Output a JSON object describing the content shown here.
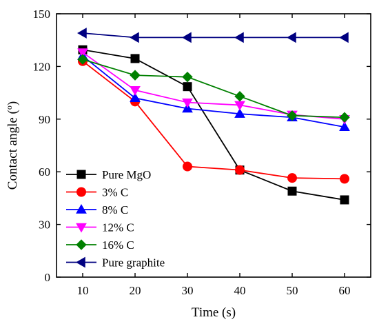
{
  "chart_data": {
    "type": "line",
    "xlabel": "Time (s)",
    "ylabel": "Contact angle (",
    "ylabel_sup": "o",
    "ylabel_close": ")",
    "xlim": [
      5,
      65
    ],
    "ylim": [
      0,
      150
    ],
    "xticks": [
      10,
      20,
      30,
      40,
      50,
      60
    ],
    "yticks": [
      0,
      30,
      60,
      90,
      120,
      150
    ],
    "x": [
      10,
      20,
      30,
      40,
      50,
      60
    ],
    "grid": false,
    "legend_position": "bottom-left",
    "series": [
      {
        "name": "Pure MgO",
        "color": "#000000",
        "marker": "square",
        "values": [
          129.5,
          124.5,
          108.5,
          61,
          49,
          44
        ]
      },
      {
        "name": "3% C",
        "color": "#ff0000",
        "marker": "circle",
        "values": [
          123,
          100,
          63,
          61,
          56.5,
          56
        ]
      },
      {
        "name": "8% C",
        "color": "#0000ff",
        "marker": "triangle-up",
        "values": [
          126,
          102,
          96,
          93,
          91,
          85.5
        ]
      },
      {
        "name": "12% C",
        "color": "#ff00ff",
        "marker": "triangle-down",
        "values": [
          128,
          106.5,
          99.5,
          98,
          92.5,
          90
        ]
      },
      {
        "name": "16% C",
        "color": "#008000",
        "marker": "diamond",
        "values": [
          124,
          115,
          114,
          103,
          92,
          91
        ]
      },
      {
        "name": "Pure graphite",
        "color": "#000080",
        "marker": "triangle-left",
        "values": [
          139,
          136.5,
          136.5,
          136.5,
          136.5,
          136.5
        ]
      }
    ]
  }
}
